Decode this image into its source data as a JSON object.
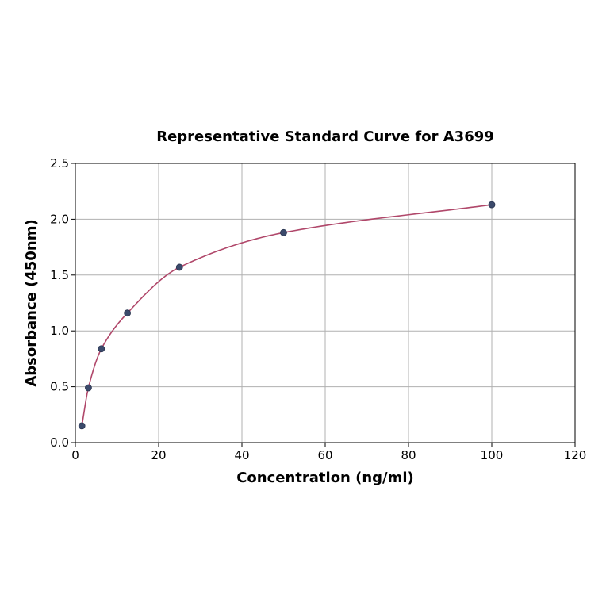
{
  "chart_data": {
    "type": "scatter",
    "title": "Representative Standard Curve for A3699",
    "xlabel": "Concentration (ng/ml)",
    "ylabel": "Absorbance (450nm)",
    "xlim": [
      0,
      120
    ],
    "ylim": [
      0,
      2.5
    ],
    "xticks": [
      0,
      20,
      40,
      60,
      80,
      100,
      120
    ],
    "yticks": [
      0.0,
      0.5,
      1.0,
      1.5,
      2.0,
      2.5
    ],
    "xtick_labels": [
      "0",
      "20",
      "40",
      "60",
      "80",
      "100",
      "120"
    ],
    "ytick_labels": [
      "0.0",
      "0.5",
      "1.0",
      "1.5",
      "2.0",
      "2.5"
    ],
    "grid": true,
    "series": [
      {
        "points": [
          {
            "x": 1.56,
            "y": 0.15
          },
          {
            "x": 3.13,
            "y": 0.49
          },
          {
            "x": 6.25,
            "y": 0.84
          },
          {
            "x": 12.5,
            "y": 1.16
          },
          {
            "x": 25,
            "y": 1.57
          },
          {
            "x": 50,
            "y": 1.88
          },
          {
            "x": 100,
            "y": 2.13
          }
        ],
        "marker_color": "#3b4a6b",
        "fit_curve": true,
        "curve_color": "#b0476a"
      }
    ]
  }
}
